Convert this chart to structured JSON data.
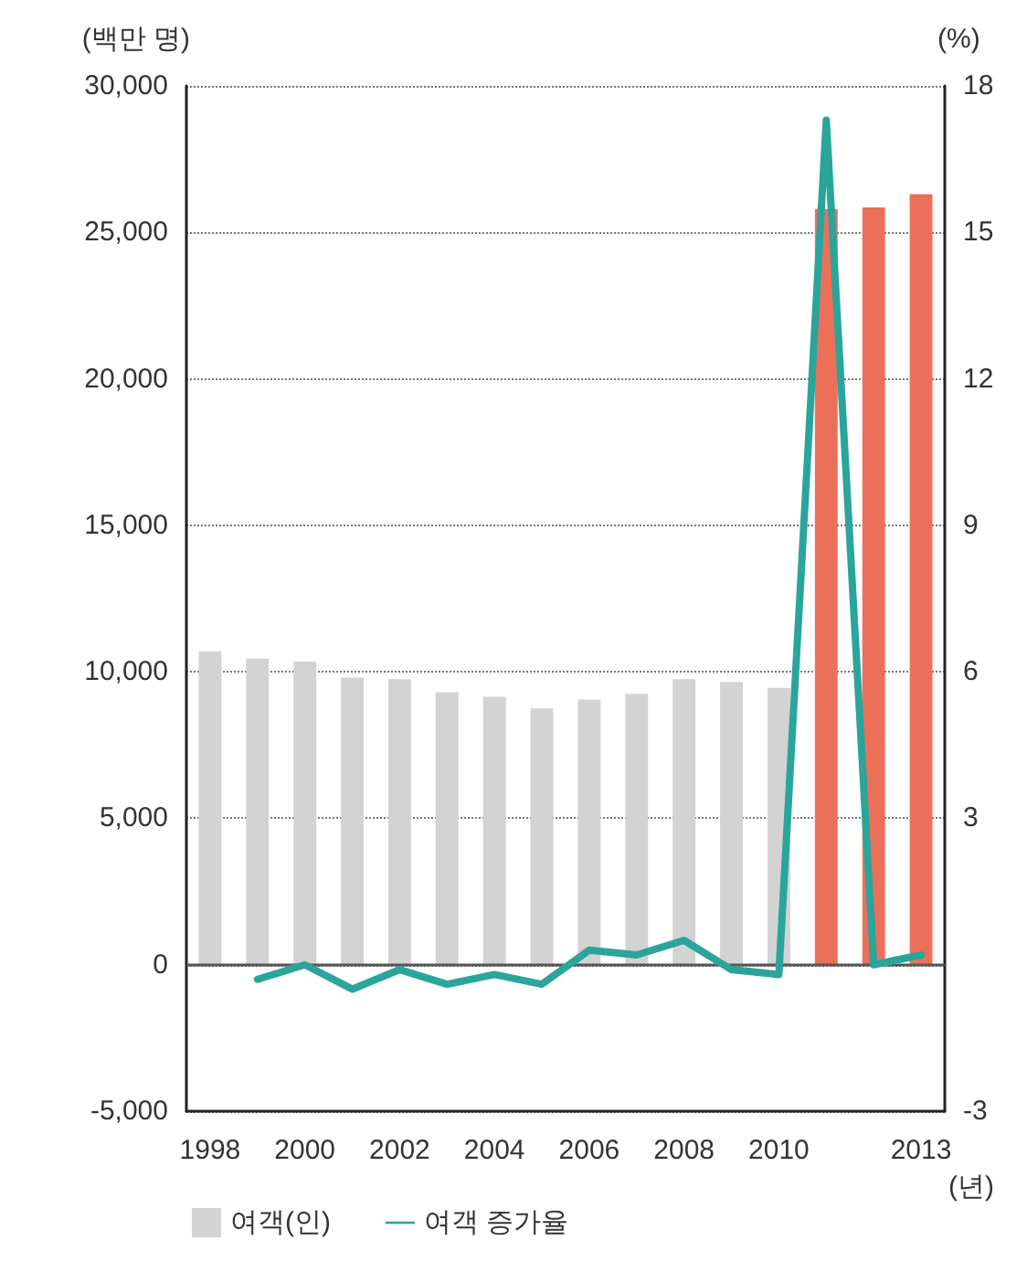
{
  "chart_data": {
    "type": "bar",
    "ylabel": "(백만 명)",
    "y2label": "(%)",
    "xlabel": "(년)",
    "categories": [
      "1998",
      null,
      "2000",
      null,
      "2002",
      null,
      "2004",
      null,
      "2006",
      null,
      "2008",
      null,
      "2010",
      null,
      null,
      "2013"
    ],
    "series": [
      {
        "name": "여객(인)",
        "color": "#d3d3d3",
        "colors": [
          "#d3d3d3",
          "#d3d3d3",
          "#d3d3d3",
          "#d3d3d3",
          "#d3d3d3",
          "#d3d3d3",
          "#d3d3d3",
          "#d3d3d3",
          "#d3d3d3",
          "#d3d3d3",
          "#d3d3d3",
          "#d3d3d3",
          "#d3d3d3",
          "#ec7059",
          "#ec7059",
          "#ec7059"
        ],
        "values": [
          10700,
          10450,
          10350,
          9800,
          9750,
          9300,
          9150,
          8750,
          9050,
          9250,
          9750,
          9650,
          9450,
          25800,
          25850,
          26300
        ]
      },
      {
        "name": "여객 증가율",
        "type": "line",
        "axis": "y2",
        "color": "#2aa59b",
        "values": [
          null,
          -0.3,
          0.0,
          -0.5,
          -0.1,
          -0.4,
          -0.2,
          -0.4,
          0.3,
          0.2,
          0.5,
          -0.1,
          -0.2,
          17.3,
          0.0,
          0.2
        ]
      }
    ],
    "ylim": [
      -5000,
      30000
    ],
    "yticks": [
      {
        "value": -5000,
        "label": "-5,000"
      },
      0,
      {
        "value": 5000,
        "label": "5,000"
      },
      {
        "value": 10000,
        "label": "10,000"
      },
      {
        "value": 15000,
        "label": "15,000"
      },
      {
        "value": 20000,
        "label": "20,000"
      },
      {
        "value": 25000,
        "label": "25,000"
      },
      {
        "value": 30000,
        "label": "30,000"
      }
    ],
    "y2lim": [
      -3,
      18
    ],
    "y2ticks": [
      -3,
      3,
      6,
      9,
      12,
      15,
      18
    ],
    "ref_lines": [
      {
        "axis": "y",
        "value": 0,
        "color": "#555555"
      }
    ],
    "grid": "y",
    "legend": "bottom left",
    "marker": "none",
    "line_style": "solid"
  }
}
